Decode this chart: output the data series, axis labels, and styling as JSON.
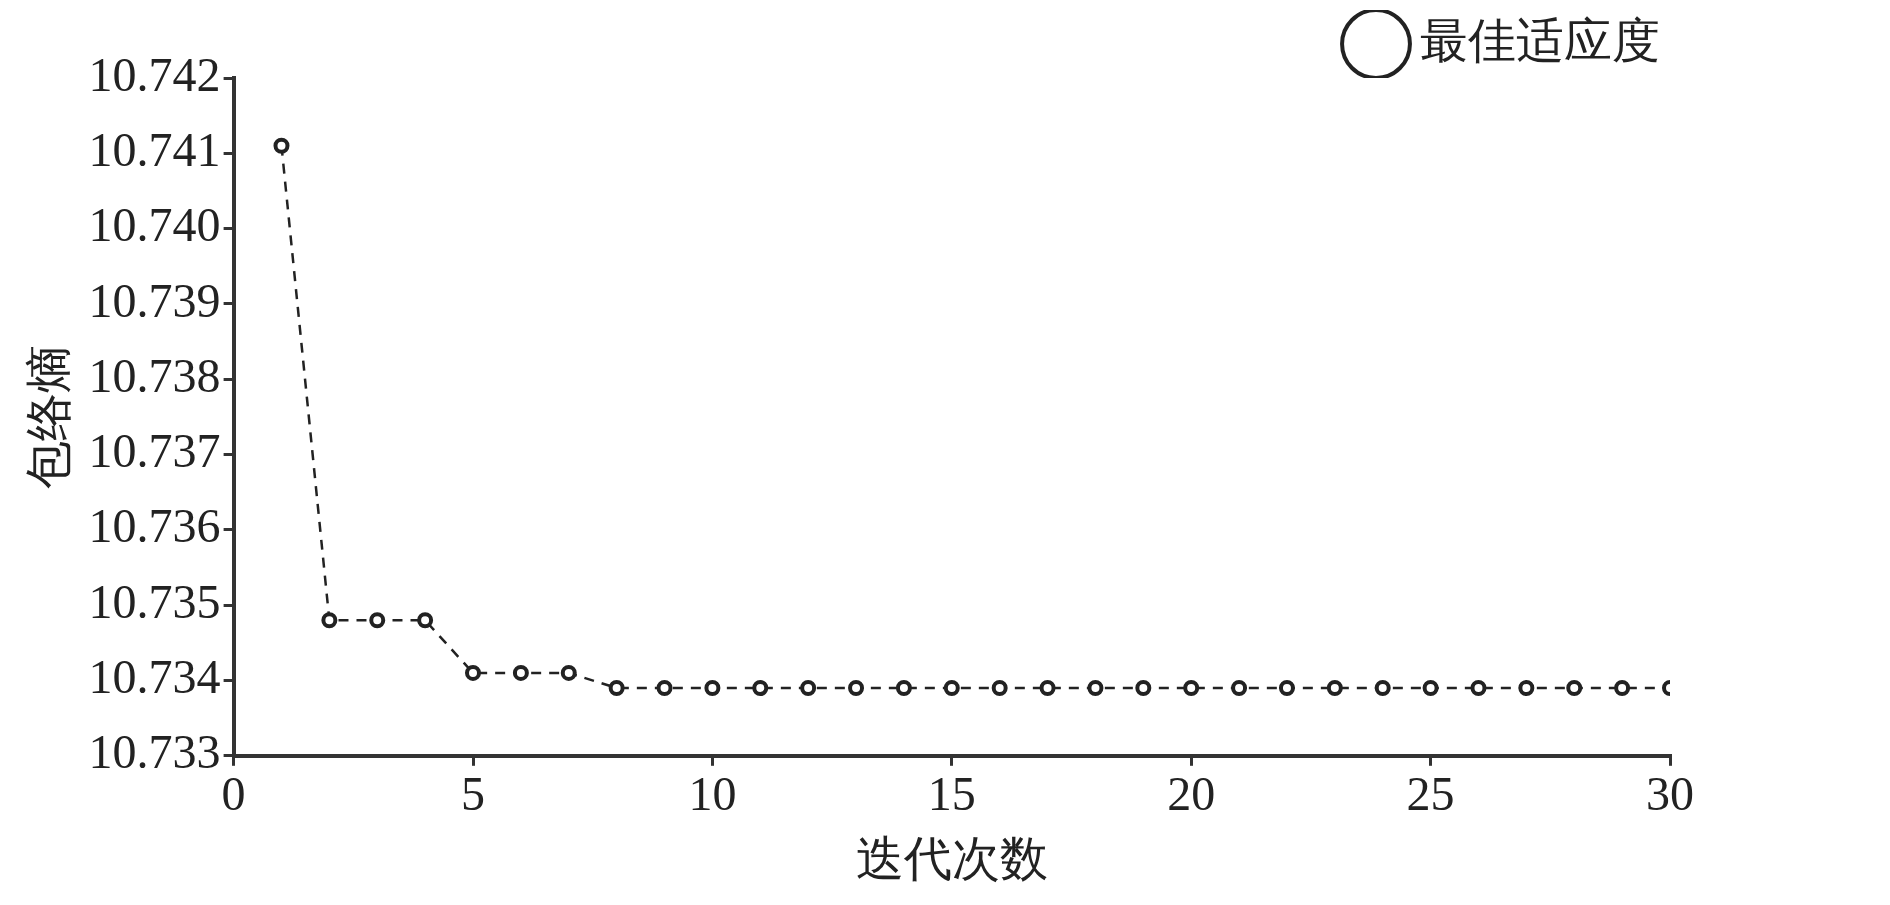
{
  "chart_data": {
    "type": "line",
    "xlabel": "迭代次数",
    "ylabel": "包络熵",
    "x": [
      1,
      2,
      3,
      4,
      5,
      6,
      7,
      8,
      9,
      10,
      11,
      12,
      13,
      14,
      15,
      16,
      17,
      18,
      19,
      20,
      21,
      22,
      23,
      24,
      25,
      26,
      27,
      28,
      29,
      30
    ],
    "series": [
      {
        "name": "最佳适应度",
        "color": "#222222",
        "values": [
          10.7411,
          10.7348,
          10.7348,
          10.7348,
          10.7341,
          10.7341,
          10.7341,
          10.7339,
          10.7339,
          10.7339,
          10.7339,
          10.7339,
          10.7339,
          10.7339,
          10.7339,
          10.7339,
          10.7339,
          10.7339,
          10.7339,
          10.7339,
          10.7339,
          10.7339,
          10.7339,
          10.7339,
          10.7339,
          10.7339,
          10.7339,
          10.7339,
          10.7339,
          10.7339
        ]
      }
    ],
    "xlim": [
      0,
      30
    ],
    "xticks": [
      0,
      5,
      10,
      15,
      20,
      25,
      30
    ],
    "ylim": [
      10.733,
      10.742
    ],
    "yticks": [
      {
        "value": 10.733,
        "label": "10.733"
      },
      {
        "value": 10.734,
        "label": "10.734"
      },
      {
        "value": 10.735,
        "label": "10.735"
      },
      {
        "value": 10.736,
        "label": "10.736"
      },
      {
        "value": 10.737,
        "label": "10.737"
      },
      {
        "value": 10.738,
        "label": "10.738"
      },
      {
        "value": 10.739,
        "label": "10.739"
      },
      {
        "value": 10.74,
        "label": "10.740"
      },
      {
        "value": 10.741,
        "label": "10.741"
      },
      {
        "value": 10.742,
        "label": "10.742"
      }
    ],
    "grid": false,
    "legend": "top right",
    "marker": "circle",
    "line_style": "dashed"
  }
}
